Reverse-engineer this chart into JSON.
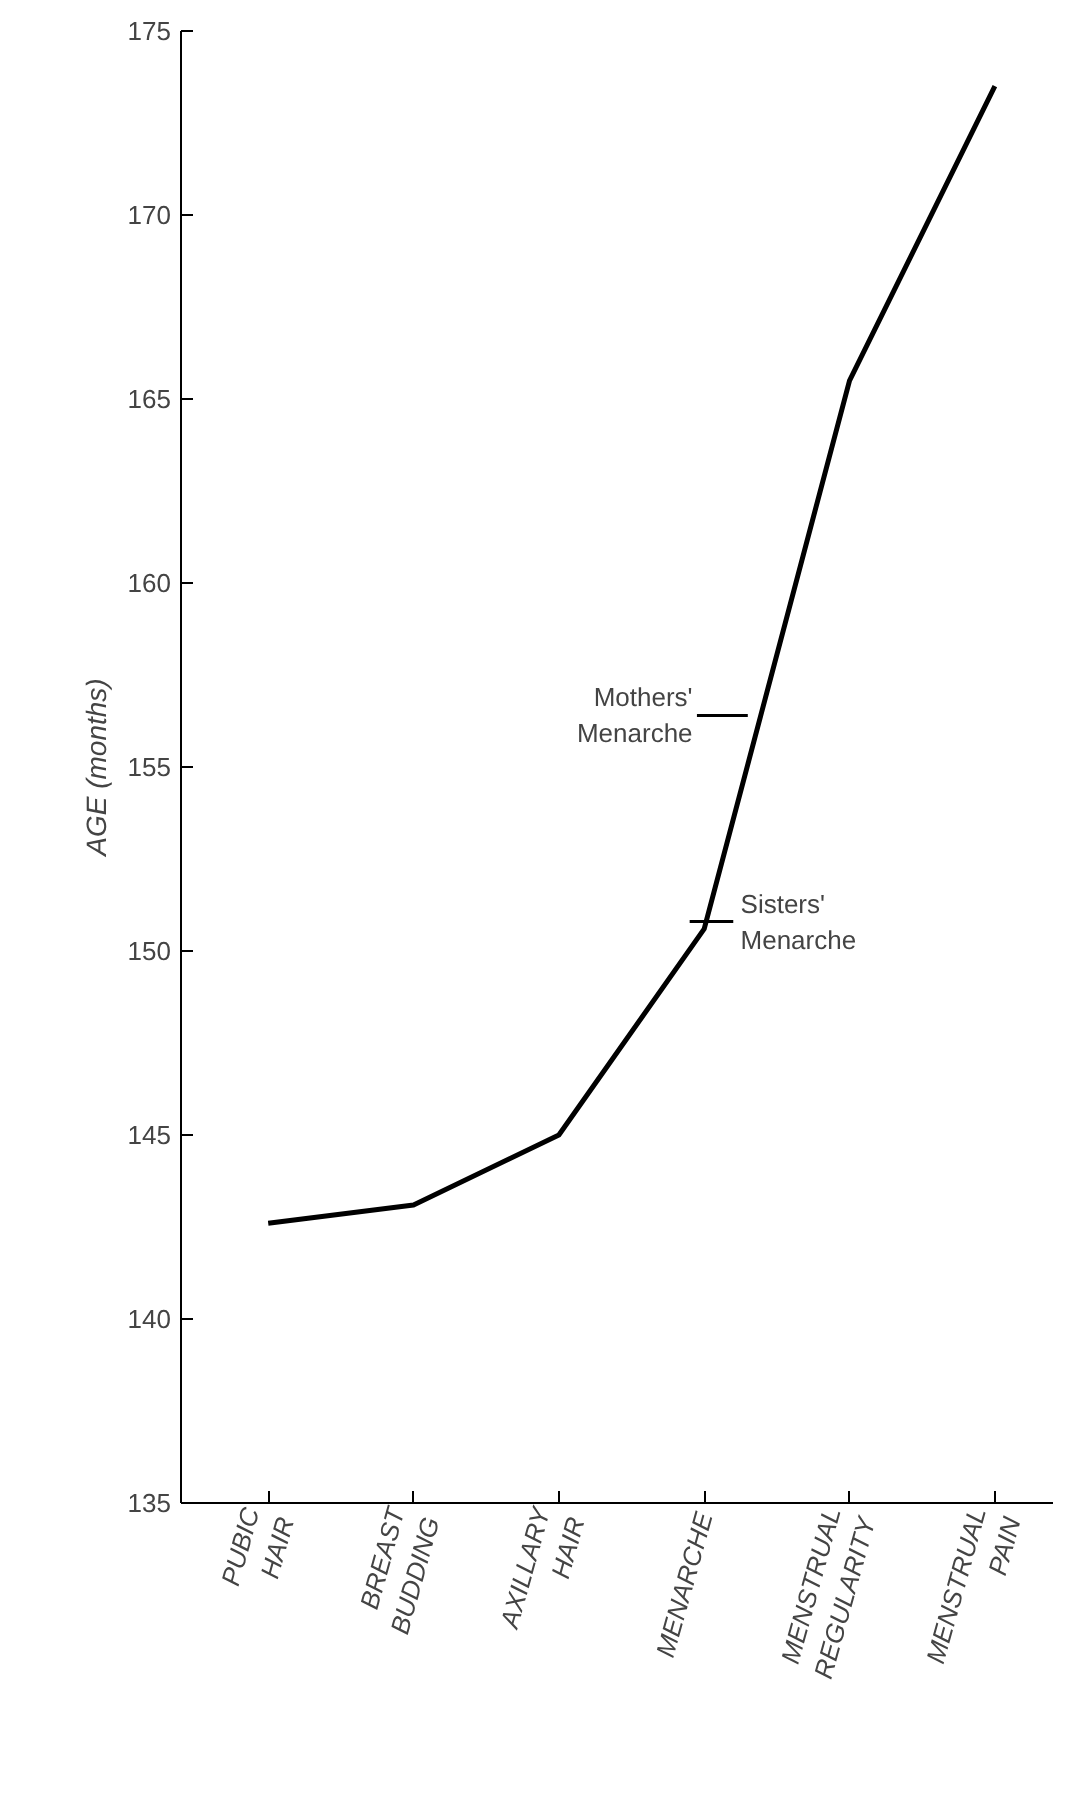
{
  "chart_data": {
    "type": "line",
    "ylabel": "AGE (months)",
    "categories": [
      "PUBIC HAIR",
      "BREAST BUDDING",
      "AXILLARY HAIR",
      "MENARCHE",
      "MENSTRUAL REGULARITY",
      "MENSTRUAL PAIN"
    ],
    "series": [
      {
        "color": "#000000",
        "values": [
          142.6,
          143.1,
          145.0,
          150.6,
          165.5,
          173.5
        ]
      }
    ],
    "ylim": [
      135,
      175
    ],
    "yticks": [
      135,
      140,
      145,
      150,
      155,
      160,
      165,
      170,
      175
    ],
    "annotations": [
      "Mothers' Menarche",
      "Sisters' Menarche"
    ],
    "grid": false,
    "marker": "none",
    "line_style": "solid"
  }
}
